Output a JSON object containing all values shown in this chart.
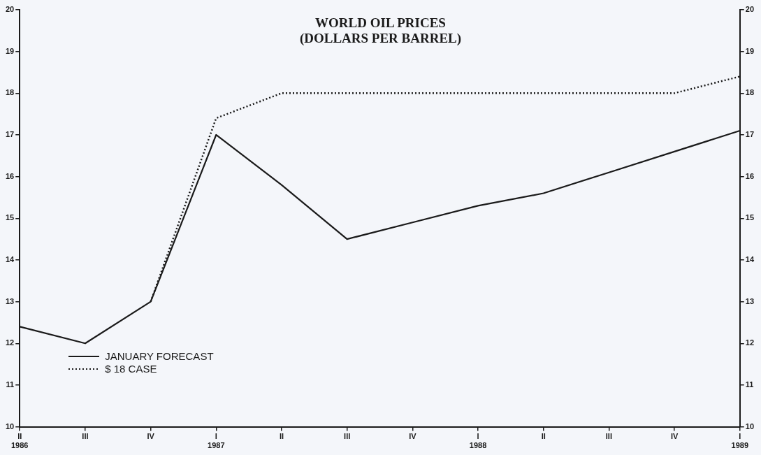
{
  "chart_data": {
    "type": "line",
    "title": "WORLD OIL PRICES\n(DOLLARS PER BARREL)",
    "categories": [
      "II\n1986",
      "III",
      "IV",
      "I\n1987",
      "II",
      "III",
      "IV",
      "I\n1988",
      "II",
      "III",
      "IV",
      "I\n1989"
    ],
    "series": [
      {
        "name": "JANUARY FORECAST",
        "color": "#1a1a1a",
        "line_style": "solid",
        "values": [
          12.4,
          12.0,
          13.0,
          17.0,
          15.8,
          14.5,
          14.9,
          15.3,
          15.6,
          16.1,
          16.6,
          17.1
        ]
      },
      {
        "name": "$ 18 CASE",
        "color": "#1a1a1a",
        "line_style": "dotted",
        "values": [
          null,
          null,
          13.0,
          17.4,
          18.0,
          18.0,
          18.0,
          18.0,
          18.0,
          18.0,
          18.0,
          18.4
        ]
      }
    ],
    "ylim": [
      10,
      20
    ],
    "yticks": [
      10,
      11,
      12,
      13,
      14,
      15,
      16,
      17,
      18,
      19,
      20
    ],
    "y2lim": [
      10,
      20
    ],
    "y2ticks": [
      10,
      11,
      12,
      13,
      14,
      15,
      16,
      17,
      18,
      19,
      20
    ],
    "grid": false,
    "legend": "bottom left",
    "marker": "none"
  }
}
